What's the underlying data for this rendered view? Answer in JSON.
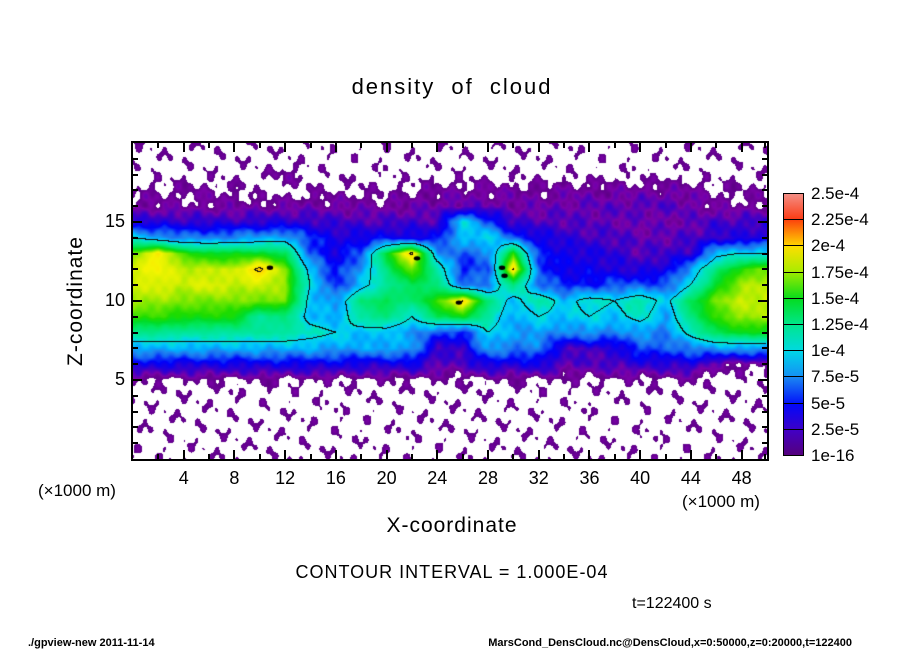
{
  "header": {
    "title": "density of cloud"
  },
  "plot": {
    "x_axis": {
      "label": "X-coordinate",
      "unit_label_left": "(×1000 m)",
      "unit_label_right": "(×1000 m)",
      "range": [
        0,
        50
      ],
      "major_ticks": [
        4,
        8,
        12,
        16,
        20,
        24,
        28,
        32,
        36,
        40,
        44,
        48
      ],
      "minor_ticks": [
        2,
        6,
        10,
        14,
        18,
        22,
        26,
        30,
        34,
        38,
        42,
        46,
        50
      ]
    },
    "y_axis": {
      "label": "Z-coordinate",
      "range": [
        0,
        20
      ],
      "major_ticks": [
        15,
        10,
        5
      ],
      "minor_step": 1
    }
  },
  "annotations": {
    "contour_interval": "CONTOUR INTERVAL = 1.000E-04",
    "time_label": "t=122400 s"
  },
  "footer": {
    "left": "./gpview-new  2011-11-14",
    "right": "MarsCond_DensCloud.nc@DensCloud,x=0:50000,z=0:20000,t=122400"
  },
  "colorbar": {
    "labels": [
      "2.5e-4",
      "2.25e-4",
      "2e-4",
      "1.75e-4",
      "1.5e-4",
      "1.25e-4",
      "1e-4",
      "7.5e-5",
      "5e-5",
      "2.5e-5",
      "1e-16"
    ],
    "levels": [
      0.00025,
      0.000225,
      0.0002,
      0.000175,
      0.00015,
      0.000125,
      0.0001,
      7.5e-05,
      5e-05,
      2.5e-05,
      1e-16
    ]
  },
  "chart_data": {
    "type": "heatmap",
    "title": "density of cloud",
    "xlabel": "X-coordinate (×1000 m)",
    "ylabel": "Z-coordinate (×1000 m)",
    "x_range": [
      0,
      50
    ],
    "z_range": [
      0,
      20
    ],
    "contour_interval": 0.0001,
    "contour_levels_drawn": [
      0.0001,
      0.0002
    ],
    "levels": [
      1e-16,
      2.5e-05,
      5e-05,
      7.5e-05,
      0.0001,
      0.000125,
      0.00015,
      0.000175,
      0.0002,
      0.000225,
      0.00025
    ],
    "value_scale_of_grid": 1e-05,
    "grid_x_start": 0,
    "grid_x_step": 2,
    "grid_z_start": 20,
    "grid_z_step": -1,
    "values_x1e5": [
      [
        0,
        0,
        0,
        0,
        0,
        0,
        0,
        0,
        0,
        0,
        0,
        0,
        0,
        0,
        0,
        0,
        0,
        0,
        0,
        0,
        0,
        0,
        0,
        0,
        0,
        0
      ],
      [
        0,
        0,
        0,
        0,
        0,
        0,
        0,
        0,
        0,
        0,
        0,
        0,
        0,
        0,
        0,
        0,
        0,
        0,
        0,
        0,
        0,
        0,
        0,
        0,
        0,
        0
      ],
      [
        0,
        0,
        0,
        0,
        0,
        0,
        0.9,
        0,
        0,
        0,
        0,
        0,
        0,
        0,
        0,
        0,
        0,
        0,
        0,
        0,
        0,
        0,
        0,
        0,
        0,
        0
      ],
      [
        0.4,
        0.5,
        0.6,
        0.7,
        0.5,
        0,
        0,
        0.4,
        0.3,
        0.4,
        0.3,
        0.5,
        0.8,
        1.0,
        1.0,
        0.9,
        0.8,
        1.0,
        1.1,
        1.0,
        1.1,
        1.2,
        1.0,
        0.5,
        0.4,
        0.6
      ],
      [
        0.9,
        1.0,
        0.7,
        1.0,
        0.9,
        1.0,
        1.1,
        1.2,
        1.2,
        1.1,
        1.0,
        1.2,
        1.5,
        1.6,
        1.5,
        1.4,
        1.3,
        1.6,
        1.8,
        1.8,
        2.0,
        2.0,
        1.6,
        0.8,
        0.7,
        0.9
      ],
      [
        3.0,
        3.2,
        3.0,
        2.8,
        2.8,
        3.0,
        3.2,
        2.8,
        2.5,
        2.3,
        2.2,
        2.5,
        2.2,
        10.0,
        6.0,
        2.2,
        2.2,
        2.0,
        1.8,
        1.8,
        1.4,
        1.4,
        1.6,
        2.5,
        2.5,
        2.8
      ],
      [
        10,
        8,
        7,
        7,
        7.5,
        8,
        8.5,
        5.5,
        3.5,
        4,
        4.5,
        4,
        4.5,
        9,
        10,
        6,
        4,
        3,
        2.5,
        2.2,
        1.8,
        1.8,
        2.2,
        3,
        3.2,
        3.5
      ],
      [
        17,
        19.5,
        16,
        15,
        15,
        15,
        14,
        6,
        4,
        6,
        15,
        20.5,
        8,
        6,
        7,
        16,
        5,
        4,
        3.5,
        3,
        2,
        2.5,
        3,
        9,
        10,
        10
      ],
      [
        18.5,
        19,
        18,
        18,
        18,
        20.5,
        17,
        9,
        4.5,
        8,
        13,
        17,
        12,
        5,
        6,
        20.2,
        6,
        4,
        4,
        3.5,
        3,
        4,
        8,
        13,
        16,
        17
      ],
      [
        18,
        18.5,
        18,
        18.5,
        18,
        18,
        17.5,
        10,
        5,
        9,
        12,
        14,
        13,
        7,
        7,
        13,
        7,
        5,
        5,
        6,
        6,
        6,
        10,
        15,
        17.5,
        18
      ],
      [
        17.5,
        17.5,
        17,
        17,
        17,
        17,
        17,
        9,
        8,
        13,
        14,
        13,
        16,
        20.2,
        13,
        9,
        12,
        9,
        11,
        10,
        12,
        9,
        14,
        17,
        18,
        18
      ],
      [
        16,
        16,
        15.5,
        15.5,
        15.5,
        12,
        13,
        9,
        8,
        12,
        13,
        10,
        14,
        15,
        12,
        8,
        10,
        9,
        10,
        9,
        11,
        8,
        13,
        16,
        17.5,
        17.5
      ],
      [
        12.5,
        12.5,
        12,
        12,
        12,
        12,
        12,
        11,
        10,
        9,
        9,
        8,
        6,
        5,
        10,
        8,
        8,
        7,
        8,
        7,
        8,
        7,
        11,
        14,
        15,
        15
      ],
      [
        8.5,
        8.5,
        8.5,
        8.5,
        8.5,
        8.5,
        8.5,
        8.5,
        8,
        8,
        8.5,
        8,
        2.5,
        3,
        8,
        7,
        7,
        2.5,
        2.5,
        3,
        6,
        6,
        7,
        8,
        8,
        8
      ],
      [
        4,
        4,
        3.8,
        3.8,
        3.8,
        4,
        4,
        4,
        4,
        3.5,
        3.5,
        4,
        2,
        2,
        4,
        3.5,
        4,
        2,
        2,
        2.5,
        3,
        3,
        3.5,
        1.0,
        0.8,
        0.8
      ],
      [
        0.3,
        0.3,
        0.3,
        0.3,
        0.3,
        0.3,
        0.3,
        0.3,
        0.3,
        0.3,
        0.3,
        0.3,
        0.25,
        0.3,
        0.3,
        0.3,
        0.3,
        0.3,
        0.3,
        0.3,
        0.3,
        0.3,
        0.5,
        0,
        0,
        0
      ],
      [
        0,
        0,
        0,
        0,
        0,
        0,
        0,
        0,
        0,
        0,
        0,
        0,
        0,
        0,
        0,
        0,
        0,
        0,
        0,
        0,
        0,
        0,
        0,
        0,
        0,
        0
      ],
      [
        0,
        0,
        0,
        0,
        0,
        0,
        0,
        0,
        0,
        0,
        0,
        0,
        0,
        0,
        0,
        0,
        0,
        0,
        0,
        0,
        0,
        0,
        0,
        0,
        0,
        0
      ],
      [
        0,
        0,
        0,
        0,
        0,
        0,
        0,
        0,
        0,
        0,
        0,
        0,
        0,
        0,
        0,
        0,
        0,
        0,
        0,
        0,
        0,
        0,
        0,
        0,
        0,
        0
      ],
      [
        0,
        0,
        0,
        0,
        0,
        0,
        0,
        0,
        0,
        0,
        0,
        0,
        0,
        0,
        0,
        0,
        0,
        0,
        0,
        0,
        0,
        0,
        0,
        0,
        0,
        0
      ],
      [
        0,
        0,
        0,
        0,
        0,
        0,
        0,
        0,
        0,
        0,
        0,
        0,
        0,
        0,
        0,
        0,
        0,
        0,
        0,
        0,
        0,
        0,
        0,
        0,
        0,
        0
      ]
    ],
    "peak_markers": [
      [
        10.8,
        12.1
      ],
      [
        22.4,
        12.7
      ],
      [
        25.7,
        9.9
      ],
      [
        29.1,
        12.1
      ],
      [
        29.3,
        11.6
      ]
    ],
    "colormap": [
      [
        0.0,
        "#500078"
      ],
      [
        0.05,
        "#7A00A8"
      ],
      [
        0.1,
        "#3C00C8"
      ],
      [
        0.15,
        "#1400E6"
      ],
      [
        0.19,
        "#0000FA"
      ],
      [
        0.25,
        "#1464F5"
      ],
      [
        0.29,
        "#1E82F0"
      ],
      [
        0.33,
        "#00AAFF"
      ],
      [
        0.37,
        "#00C8FA"
      ],
      [
        0.41,
        "#00DCDC"
      ],
      [
        0.45,
        "#00E6B4"
      ],
      [
        0.5,
        "#00E68C"
      ],
      [
        0.55,
        "#00E65A"
      ],
      [
        0.59,
        "#00DC28"
      ],
      [
        0.63,
        "#1EDC00"
      ],
      [
        0.67,
        "#64E600"
      ],
      [
        0.7,
        "#A0EB00"
      ],
      [
        0.73,
        "#D7F000"
      ],
      [
        0.76,
        "#F5F500"
      ],
      [
        0.8,
        "#FFDC00"
      ],
      [
        0.84,
        "#FFAA00"
      ],
      [
        0.875,
        "#FF6400"
      ],
      [
        0.91,
        "#FA3214"
      ],
      [
        0.95,
        "#F04646"
      ],
      [
        1.0,
        "#F5968C"
      ]
    ],
    "no_data_color": "#FFFFFF",
    "contour_color": "#000000"
  }
}
